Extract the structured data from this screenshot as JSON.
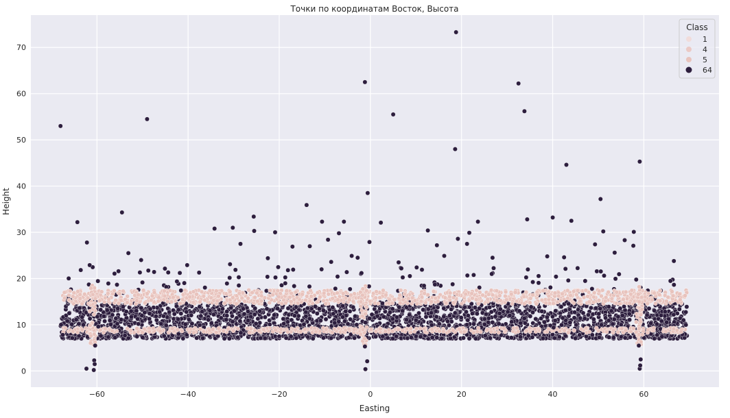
{
  "chart_data": {
    "type": "scatter",
    "title": "Точки по координатам Восток, Высота",
    "xlabel": "Easting",
    "ylabel": "Height",
    "xlim": [
      -74.5,
      76.5
    ],
    "ylim": [
      -3.5,
      77
    ],
    "x_ticks": [
      -60,
      -40,
      -20,
      0,
      20,
      40,
      60
    ],
    "x_tick_labels": [
      "−60",
      "−40",
      "−20",
      "0",
      "20",
      "40",
      "60"
    ],
    "y_ticks": [
      0,
      10,
      20,
      30,
      40,
      50,
      60,
      70
    ],
    "y_tick_labels": [
      "0",
      "10",
      "20",
      "30",
      "40",
      "50",
      "60",
      "70"
    ],
    "grid": true,
    "legend": {
      "title": "Class",
      "position": "top-right",
      "entries": [
        "1",
        "4",
        "5",
        "64"
      ]
    },
    "series": [
      {
        "name": "1",
        "color": "#f1dcdb",
        "points": []
      },
      {
        "name": "4",
        "color": "#ebc9c5",
        "points": []
      },
      {
        "name": "5",
        "color": "#e8c3bd",
        "description_bands": {
          "upper_band_y": [
            14.5,
            17.5
          ],
          "lower_band_y": [
            8.3,
            9.3
          ],
          "x_range": [
            -67.5,
            69.5
          ],
          "vertical_columns_x": [
            -61,
            -1.5,
            59
          ],
          "vertical_columns_y": [
            5.5,
            18.5
          ]
        }
      },
      {
        "name": "64",
        "color": "#2d1e3e",
        "dense_region": {
          "x_range": [
            -68,
            69.5
          ],
          "y_range": [
            7,
            14.5
          ]
        },
        "outliers": [
          [
            -68,
            53
          ],
          [
            -49,
            54.5
          ],
          [
            -1.2,
            62.5
          ],
          [
            18.8,
            73.3
          ],
          [
            32.5,
            62.2
          ],
          [
            5,
            55.5
          ],
          [
            18.6,
            48
          ],
          [
            33.8,
            56.2
          ],
          [
            43,
            44.6
          ],
          [
            59.1,
            45.3
          ],
          [
            -0.6,
            38.5
          ],
          [
            50.5,
            37.2
          ],
          [
            -54.5,
            34.3
          ],
          [
            -14,
            35.9
          ],
          [
            -25.6,
            33.4
          ],
          [
            -64.3,
            32.2
          ],
          [
            -10.6,
            32.3
          ],
          [
            -5.8,
            32.3
          ],
          [
            2.3,
            32.1
          ],
          [
            23.6,
            32.3
          ],
          [
            34.4,
            32.8
          ],
          [
            40,
            33.2
          ],
          [
            44.1,
            32.5
          ],
          [
            51.1,
            30.2
          ],
          [
            57.8,
            30.1
          ],
          [
            -34.2,
            30.8
          ],
          [
            -30.2,
            31
          ],
          [
            -25.5,
            30.3
          ],
          [
            -20.9,
            30
          ],
          [
            12.6,
            30.4
          ],
          [
            -62.2,
            27.8
          ],
          [
            -53.1,
            25.5
          ],
          [
            -28.5,
            27.5
          ],
          [
            -17.1,
            26.9
          ],
          [
            -13.3,
            27
          ],
          [
            -9.3,
            28.4
          ],
          [
            -6.9,
            29.8
          ],
          [
            -0.2,
            27.9
          ],
          [
            14.6,
            27.2
          ],
          [
            19.2,
            28.6
          ],
          [
            21.7,
            29.9
          ],
          [
            21.2,
            27.5
          ],
          [
            49.3,
            27.4
          ],
          [
            55.8,
            28.3
          ],
          [
            57.7,
            27.1
          ],
          [
            -61.6,
            22.9
          ],
          [
            -50.3,
            24
          ],
          [
            -40.2,
            22.9
          ],
          [
            -30.8,
            23.1
          ],
          [
            -22.5,
            24.4
          ],
          [
            -8.6,
            23.6
          ],
          [
            -4.1,
            24.9
          ],
          [
            -2.8,
            24.5
          ],
          [
            6.2,
            23.5
          ],
          [
            16.2,
            24.9
          ],
          [
            26.8,
            24.5
          ],
          [
            38.8,
            24.8
          ],
          [
            42.5,
            24.6
          ],
          [
            53.6,
            25.6
          ],
          [
            66.6,
            23.8
          ],
          [
            -67.5,
            7.8
          ],
          [
            -59.7,
            9.6
          ],
          [
            -42.1,
            8
          ],
          [
            -20,
            7.5
          ],
          [
            -3,
            10
          ],
          [
            10,
            11
          ],
          [
            25.4,
            12.3
          ],
          [
            40.2,
            9.4
          ],
          [
            55.3,
            12
          ],
          [
            68.7,
            11
          ]
        ],
        "low_outliers": [
          [
            -62.3,
            0.5
          ],
          [
            -60.6,
            2.3
          ],
          [
            -60.5,
            1.5
          ],
          [
            -60.7,
            0.2
          ],
          [
            -60.4,
            5.5
          ],
          [
            -1.1,
            0.4
          ],
          [
            -0.7,
            2.1
          ],
          [
            -1.2,
            5.3
          ],
          [
            59.1,
            0.5
          ],
          [
            59.2,
            1.2
          ],
          [
            59.3,
            2.5
          ],
          [
            58.9,
            5.5
          ]
        ]
      }
    ]
  }
}
